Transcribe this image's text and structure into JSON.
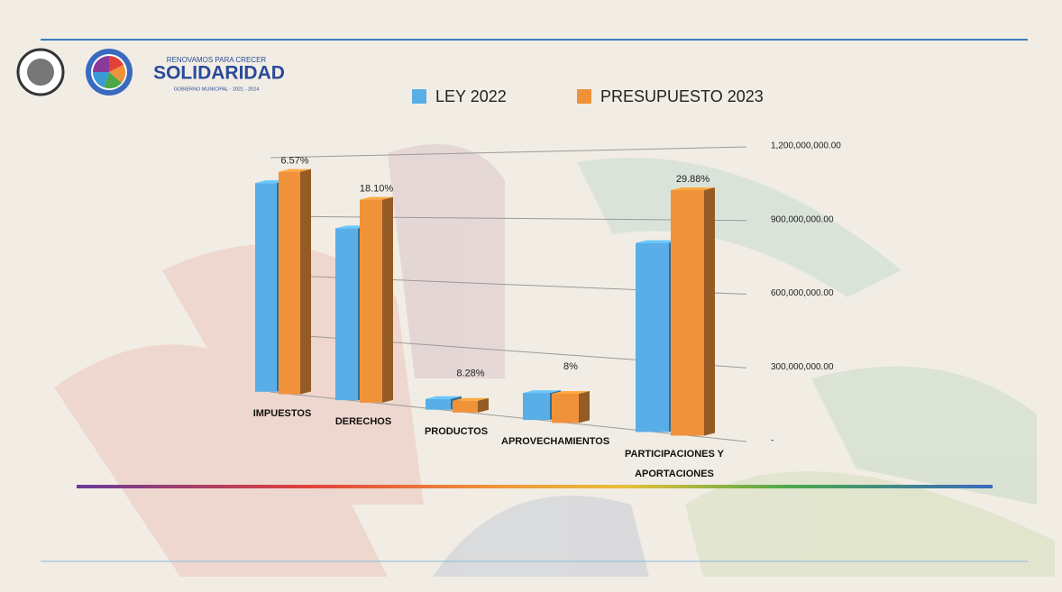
{
  "header": {
    "tagline": "RENOVAMOS PARA CRECER",
    "name": "SOLIDARIDAD",
    "subtitle": "GOBIERNO MUNICIPAL · 2021 - 2024"
  },
  "chart_data": {
    "type": "bar3d",
    "categories": [
      "IMPUESTOS",
      "DERECHOS",
      "PRODUCTOS",
      "APROVECHAMIENTOS",
      "PARTICIPACIONES Y APORTACIONES"
    ],
    "series": [
      {
        "name": "LEY 2022",
        "color": "#5aaee8",
        "values": [
          850000000,
          700000000,
          44000000,
          110000000,
          770000000
        ]
      },
      {
        "name": "PRESUPUESTO 2023",
        "color": "#f0923a",
        "values": [
          906000000,
          827000000,
          48000000,
          119000000,
          1000000000
        ]
      }
    ],
    "annotations": [
      "6.57%",
      "18.10%",
      "8.28%",
      "8%",
      "29.88%"
    ],
    "ylim": [
      0,
      1200000000
    ],
    "yticks": [
      {
        "value": 0,
        "label": "-"
      },
      {
        "value": 300000000,
        "label": "300,000,000.00"
      },
      {
        "value": 600000000,
        "label": "600,000,000.00"
      },
      {
        "value": 900000000,
        "label": "900,000,000.00"
      },
      {
        "value": 1200000000,
        "label": "1,200,000,000.00"
      }
    ],
    "grid": true
  }
}
